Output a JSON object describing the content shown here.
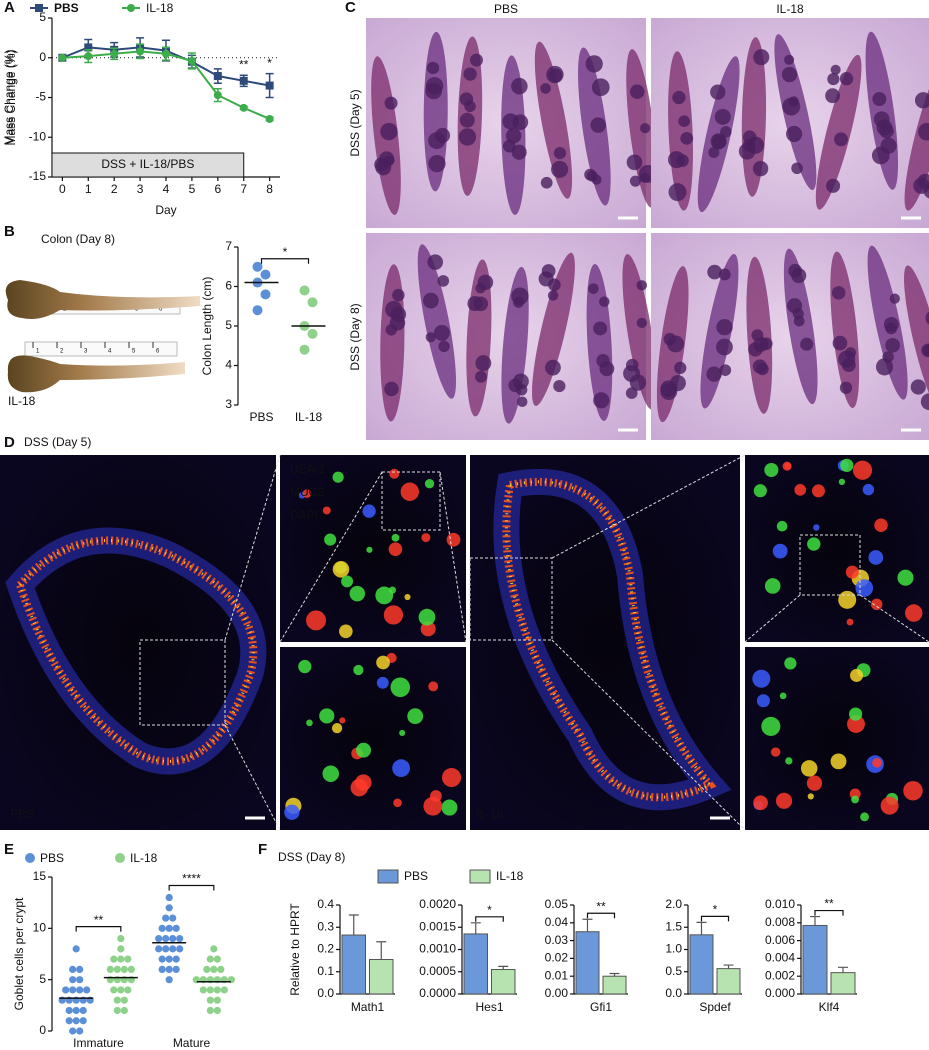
{
  "panel_labels": [
    "A",
    "B",
    "C",
    "D",
    "E",
    "F"
  ],
  "chart_data": [
    {
      "type": "line",
      "x": [
        0,
        1,
        2,
        3,
        4,
        5,
        6,
        7,
        8
      ],
      "xlim": [
        -0.4,
        8.4
      ],
      "xticks": [
        0,
        1,
        2,
        3,
        4,
        5,
        6,
        7,
        8
      ],
      "ylim": [
        -15,
        5
      ],
      "yticks": [
        5,
        0,
        -5,
        -10,
        -15
      ],
      "xlabel": "Day",
      "ylabel": "Mass Change (%)",
      "hline": 0,
      "series": [
        {
          "name": "PBS",
          "color": "#2d4a7a",
          "marker": "square",
          "values": [
            0,
            1.3,
            1.0,
            1.3,
            0.9,
            -0.5,
            -2.3,
            -2.9,
            -3.5
          ],
          "errors": [
            0,
            1.0,
            0.9,
            1.2,
            1.3,
            0.8,
            0.9,
            0.7,
            1.5
          ]
        },
        {
          "name": "IL-18",
          "color": "#3cad4a",
          "marker": "circle",
          "values": [
            0,
            0.2,
            0.5,
            0.8,
            0.5,
            -0.4,
            -4.7,
            -6.3,
            -7.7
          ],
          "errors": [
            0,
            0.8,
            0.7,
            0.9,
            0.8,
            1.0,
            0.8,
            0.2,
            0.2
          ]
        }
      ],
      "treatment": {
        "text": "DSS + IL-18/PBS",
        "until": 7
      },
      "annotations": [
        {
          "text": "**",
          "x": 7
        },
        {
          "text": "*",
          "x": 8
        }
      ]
    },
    {
      "type": "strip",
      "categories": [
        "PBS",
        "IL-18"
      ],
      "colors": [
        "#5b8fd6",
        "#8ed18a"
      ],
      "ylabel": "Colon Length (cm)",
      "ylim": [
        3,
        7
      ],
      "yticks": [
        3,
        4,
        5,
        6,
        7
      ],
      "values": [
        [
          6.5,
          6.3,
          6.1,
          5.8,
          5.4
        ],
        [
          5.9,
          5.6,
          5.0,
          4.8,
          4.4
        ]
      ],
      "means": [
        6.1,
        5.0
      ],
      "significance": "*"
    },
    {
      "type": "strip",
      "categories": [
        "Immature",
        "Mature"
      ],
      "ylabel": "Goblet cells per crypt",
      "ylim": [
        0,
        15
      ],
      "yticks": [
        0,
        5,
        10,
        15
      ],
      "series": [
        {
          "name": "PBS",
          "color": "#5b8fd6",
          "values": [
            [
              0,
              0,
              1,
              1,
              1,
              2,
              2,
              2,
              3,
              3,
              3,
              3,
              3,
              4,
              4,
              4,
              4,
              5,
              5,
              6,
              6,
              8
            ],
            [
              5,
              6,
              6,
              7,
              7,
              7,
              8,
              8,
              8,
              8,
              9,
              9,
              9,
              9,
              10,
              10,
              10,
              11,
              11,
              12,
              13,
              6
            ]
          ],
          "means": [
            3.2,
            8.6
          ]
        },
        {
          "name": "IL-18",
          "color": "#8ed18a",
          "values": [
            [
              2,
              2,
              3,
              3,
              4,
              4,
              4,
              5,
              5,
              5,
              5,
              6,
              6,
              6,
              6,
              7,
              7,
              8,
              9,
              7
            ],
            [
              2,
              2,
              3,
              3,
              4,
              4,
              4,
              4,
              5,
              5,
              5,
              5,
              5,
              6,
              6,
              6,
              7,
              7,
              8,
              5
            ]
          ],
          "means": [
            5.2,
            4.8
          ]
        }
      ],
      "significance": [
        "**",
        "****"
      ]
    },
    {
      "type": "bar",
      "xlabel": "Math1",
      "ylabel": "Relative to HPRT",
      "values": [
        0.265,
        0.155
      ],
      "errors": [
        0.09,
        0.08
      ],
      "ylim": [
        0,
        0.4
      ],
      "yticks": [
        {
          "value": 0,
          "label": "0.0"
        },
        0.1,
        0.2,
        0.3,
        0.4
      ]
    },
    {
      "type": "bar",
      "xlabel": "Hes1",
      "values": [
        0.00135,
        0.00055
      ],
      "errors": [
        0.00025,
        7e-05
      ],
      "ylim": [
        0,
        0.002
      ],
      "significance": "*",
      "yticks": [
        {
          "value": 0,
          "label": "0.0000"
        },
        {
          "value": 0.0005,
          "label": "0.0005"
        },
        {
          "value": 0.001,
          "label": "0.0010"
        },
        {
          "value": 0.0015,
          "label": "0.0015"
        },
        {
          "value": 0.002,
          "label": "0.0020"
        }
      ]
    },
    {
      "type": "bar",
      "xlabel": "Gfi1",
      "values": [
        0.035,
        0.01
      ],
      "errors": [
        0.007,
        0.0015
      ],
      "ylim": [
        0,
        0.05
      ],
      "significance": "**",
      "yticks": [
        {
          "value": 0,
          "label": "0.00"
        },
        0.01,
        0.02,
        0.03,
        0.04,
        0.05
      ]
    },
    {
      "type": "bar",
      "xlabel": "Spdef",
      "values": [
        1.33,
        0.57
      ],
      "errors": [
        0.28,
        0.08
      ],
      "ylim": [
        0,
        2
      ],
      "significance": "*",
      "yticks": [
        {
          "value": 0,
          "label": "0.0"
        },
        0.5,
        {
          "value": 1,
          "label": "1.0"
        },
        1.5,
        {
          "value": 2,
          "label": "2.0"
        }
      ]
    },
    {
      "type": "bar",
      "xlabel": "Klf4",
      "values": [
        0.0077,
        0.0024
      ],
      "errors": [
        0.001,
        0.0006
      ],
      "ylim": [
        0,
        0.01
      ],
      "significance": "**",
      "yticks": [
        {
          "value": 0,
          "label": "0.000"
        },
        0.002,
        0.004,
        0.006,
        0.008,
        {
          "value": 0.01,
          "label": "0.010"
        }
      ]
    }
  ],
  "panel_b": {
    "title": "Colon (Day 8)",
    "labels": [
      "PBS",
      "IL-18"
    ],
    "ruler": [
      "1",
      "2",
      "3",
      "4",
      "5",
      "6"
    ]
  },
  "panel_c": {
    "columns": [
      "PBS",
      "IL-18"
    ],
    "rows": [
      "DSS (Day 5)",
      "DSS (Day 8)"
    ]
  },
  "panel_d": {
    "title": "DSS (Day 5)",
    "legend": [
      {
        "text": "UEA-1",
        "color": "#3fe03f"
      },
      {
        "text": "MUC2",
        "color": "#ff3a2a"
      },
      {
        "text": "DAPI",
        "color": "#3a5cff"
      }
    ],
    "labels": [
      "PBS",
      "IL-18"
    ]
  },
  "panel_f": {
    "title": "DSS (Day 8)",
    "legend": [
      {
        "name": "PBS",
        "color": "#6a98d8"
      },
      {
        "name": "IL-18",
        "color": "#b7e3b0"
      }
    ]
  }
}
